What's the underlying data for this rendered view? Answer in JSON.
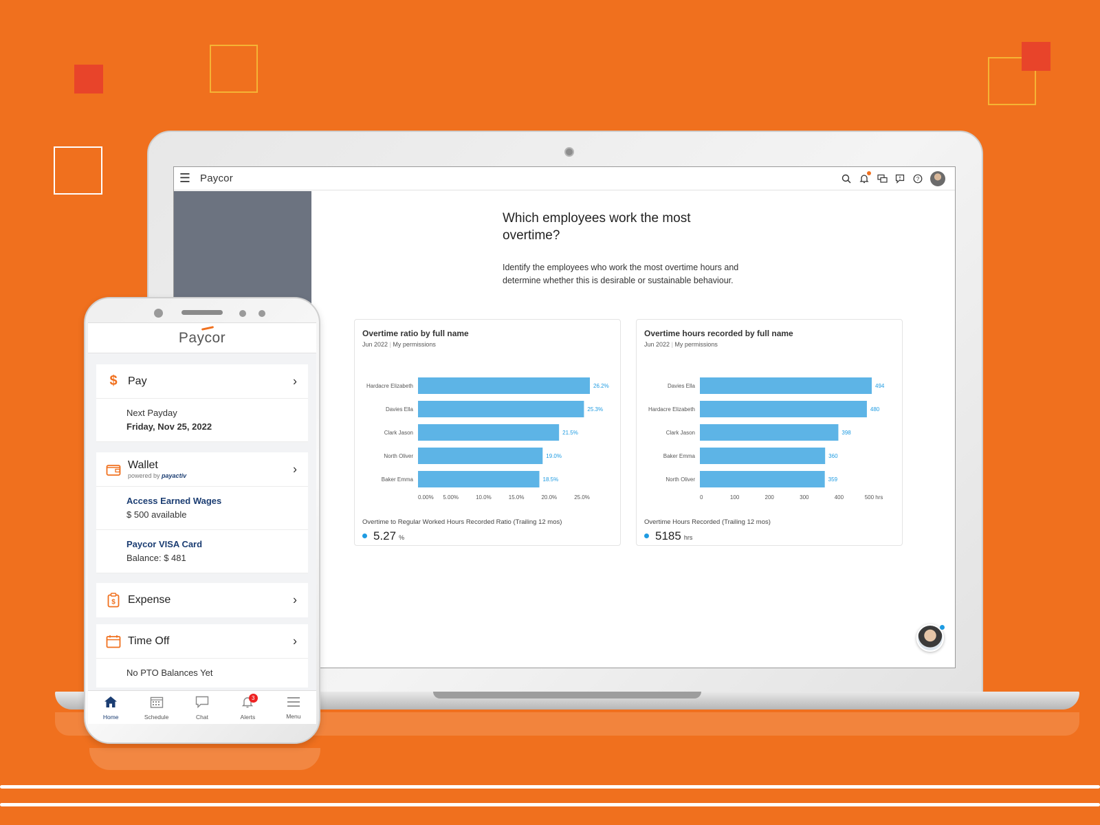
{
  "colors": {
    "background": "#f0701e",
    "accent": "#f0701e",
    "bar": "#5db4e6",
    "bar_label": "#1e9be2",
    "navy": "#1b3d72"
  },
  "desktop": {
    "brand": "Paycor",
    "icons": [
      "menu-icon",
      "search-icon",
      "bell-icon",
      "chat-icon",
      "feedback-icon",
      "help-icon",
      "avatar"
    ],
    "title": "Which employees work the most overtime?",
    "description": "Identify the employees who work the most overtime hours and determine whether this is desirable or sustainable behaviour.",
    "cards": [
      {
        "title": "Overtime ratio by full name",
        "period": "Jun 2022",
        "scope": "My permissions",
        "kpi_label": "Overtime to Regular Worked Hours Recorded Ratio (Trailing 12 mos)",
        "kpi_value": "5.27",
        "kpi_unit": "%"
      },
      {
        "title": "Overtime hours recorded by full name",
        "period": "Jun 2022",
        "scope": "My permissions",
        "kpi_label": "Overtime Hours Recorded (Trailing 12 mos)",
        "kpi_value": "5185",
        "kpi_unit": "hrs"
      }
    ]
  },
  "chart_data": [
    {
      "type": "bar",
      "orientation": "horizontal",
      "title": "Overtime ratio by full name",
      "categories": [
        "Hardacre Elizabeth",
        "Davies Ella",
        "Clark Jason",
        "North Oliver",
        "Baker Emma"
      ],
      "values": [
        26.2,
        25.3,
        21.5,
        19.0,
        18.5
      ],
      "value_labels": [
        "26.2%",
        "25.3%",
        "21.5%",
        "19.0%",
        "18.5%"
      ],
      "ticks": [
        0,
        5,
        10,
        15,
        20,
        25
      ],
      "tick_labels": [
        "0.00%",
        "5.00%",
        "10.0%",
        "15.0%",
        "20.0%",
        "25.0%"
      ],
      "xlim": [
        0,
        26.2
      ]
    },
    {
      "type": "bar",
      "orientation": "horizontal",
      "title": "Overtime hours recorded by full name",
      "categories": [
        "Davies Ella",
        "Hardacre Elizabeth",
        "Clark Jason",
        "Baker Emma",
        "North Oliver"
      ],
      "values": [
        494,
        480,
        398,
        360,
        359
      ],
      "value_labels": [
        "494",
        "480",
        "398",
        "360",
        "359"
      ],
      "ticks": [
        0,
        100,
        200,
        300,
        400,
        500
      ],
      "tick_labels": [
        "0",
        "100",
        "200",
        "300",
        "400",
        "500 hrs"
      ],
      "xlim": [
        0,
        494
      ]
    }
  ],
  "mobile": {
    "brand": "Paycor",
    "pay": {
      "label": "Pay",
      "next_payday_label": "Next Payday",
      "next_payday_date": "Friday, Nov 25, 2022"
    },
    "wallet": {
      "label": "Wallet",
      "powered_by": "powered by",
      "provider": "payactiv",
      "earned_wages_label": "Access Earned Wages",
      "earned_wages_value": "$ 500 available",
      "visa_label": "Paycor VISA Card",
      "visa_balance": "Balance: $ 481"
    },
    "expense": {
      "label": "Expense"
    },
    "time_off": {
      "label": "Time Off",
      "status": "No PTO Balances Yet"
    },
    "nav": [
      {
        "label": "Home",
        "icon": "home-icon",
        "active": true
      },
      {
        "label": "Schedule",
        "icon": "calendar-icon"
      },
      {
        "label": "Chat",
        "icon": "chat-icon"
      },
      {
        "label": "Alerts",
        "icon": "bell-icon",
        "badge": "3"
      },
      {
        "label": "Menu",
        "icon": "menu-icon"
      }
    ]
  }
}
